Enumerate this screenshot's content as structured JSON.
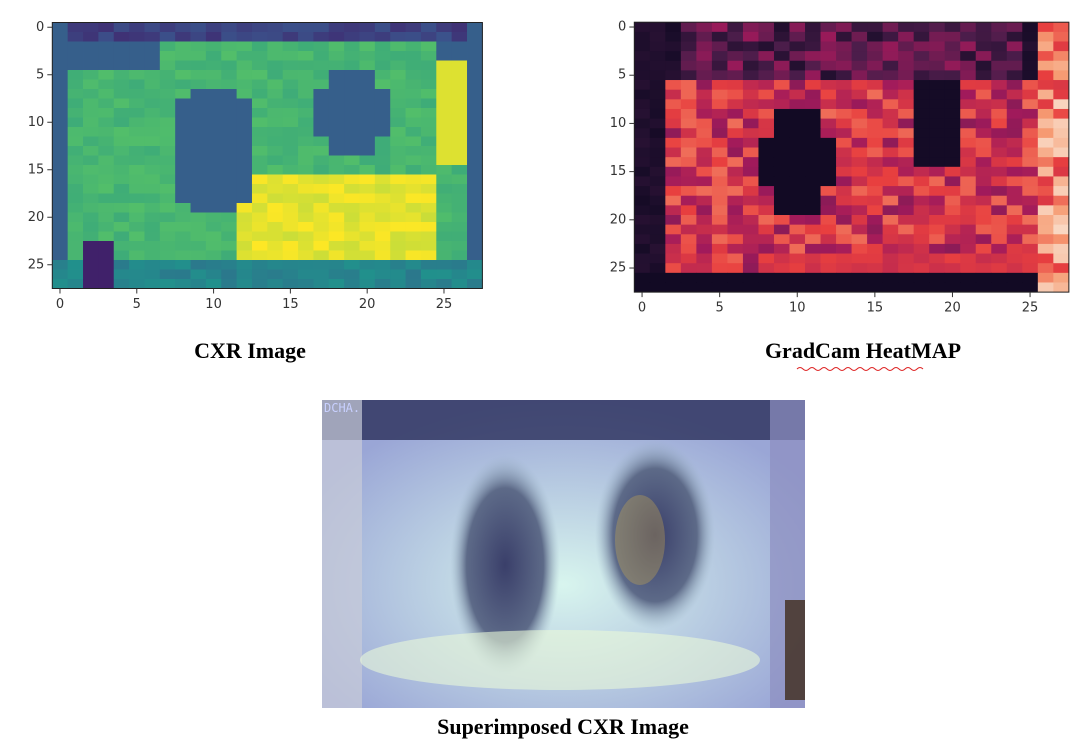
{
  "panels": [
    {
      "caption": "CXR Image",
      "xticks": [
        0,
        5,
        10,
        15,
        20,
        25
      ],
      "yticks": [
        0,
        5,
        10,
        15,
        20,
        25
      ],
      "xlim": [
        -0.5,
        27.5
      ],
      "ylim": [
        27.5,
        -0.5
      ]
    },
    {
      "caption": "GradCam HeatMAP",
      "xticks": [
        0,
        5,
        10,
        15,
        20,
        25
      ],
      "yticks": [
        0,
        5,
        10,
        15,
        20,
        25
      ],
      "xlim": [
        -0.5,
        27.5
      ],
      "ylim": [
        27.5,
        -0.5
      ]
    }
  ],
  "superimposed": {
    "overlay_text": "DCHA.",
    "caption": "Superimposed CXR Image"
  }
}
